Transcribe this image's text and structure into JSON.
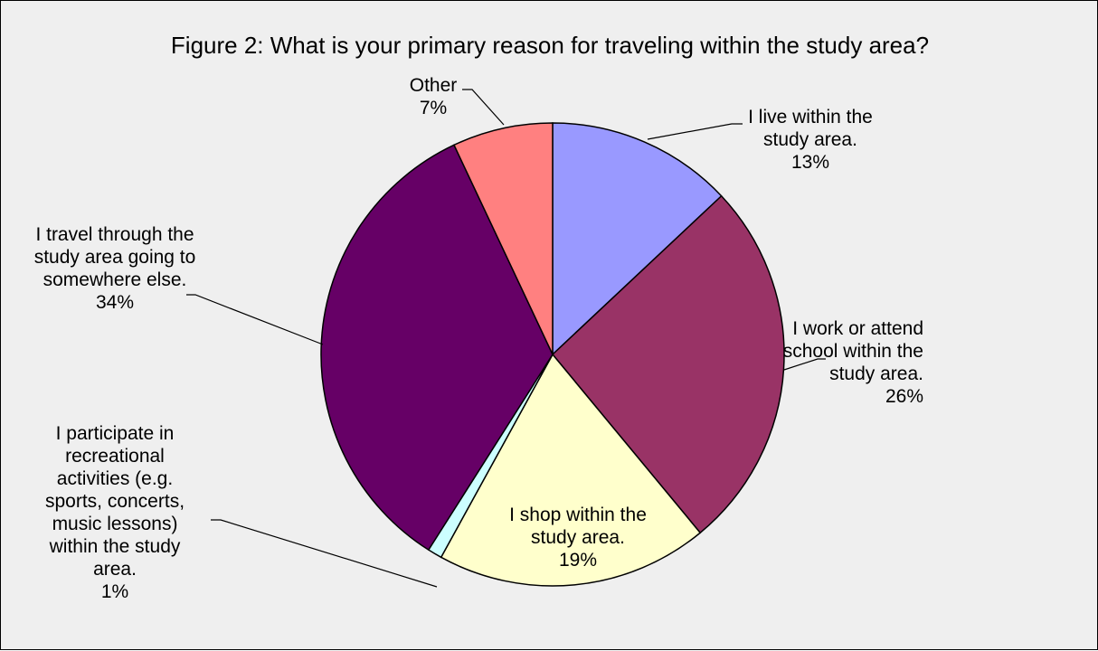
{
  "chart_data": {
    "type": "pie",
    "title": "Figure 2: What is your primary reason for traveling within the study area?",
    "slices": [
      {
        "lines": [
          "I live within the",
          "study area."
        ],
        "value": 13,
        "value_label": "13%",
        "color": "#9999ff"
      },
      {
        "lines": [
          "I work or attend",
          "school within the",
          "study area."
        ],
        "value": 26,
        "value_label": "26%",
        "color": "#993366"
      },
      {
        "lines": [
          "I shop within the",
          "study area."
        ],
        "value": 19,
        "value_label": "19%",
        "color": "#ffffcc"
      },
      {
        "lines": [
          "I participate in",
          "recreational",
          "activities (e.g.",
          "sports, concerts,",
          "music lessons)",
          "within the study",
          "area."
        ],
        "value": 1,
        "value_label": "1%",
        "color": "#ccffff"
      },
      {
        "lines": [
          "I travel through the",
          "study area going to",
          "somewhere else."
        ],
        "value": 34,
        "value_label": "34%",
        "color": "#660066"
      },
      {
        "lines": [
          "Other"
        ],
        "value": 7,
        "value_label": "7%",
        "color": "#ff8080"
      }
    ],
    "legend": "none",
    "slice_border_color": "#000000",
    "background_color": "#efefef"
  }
}
